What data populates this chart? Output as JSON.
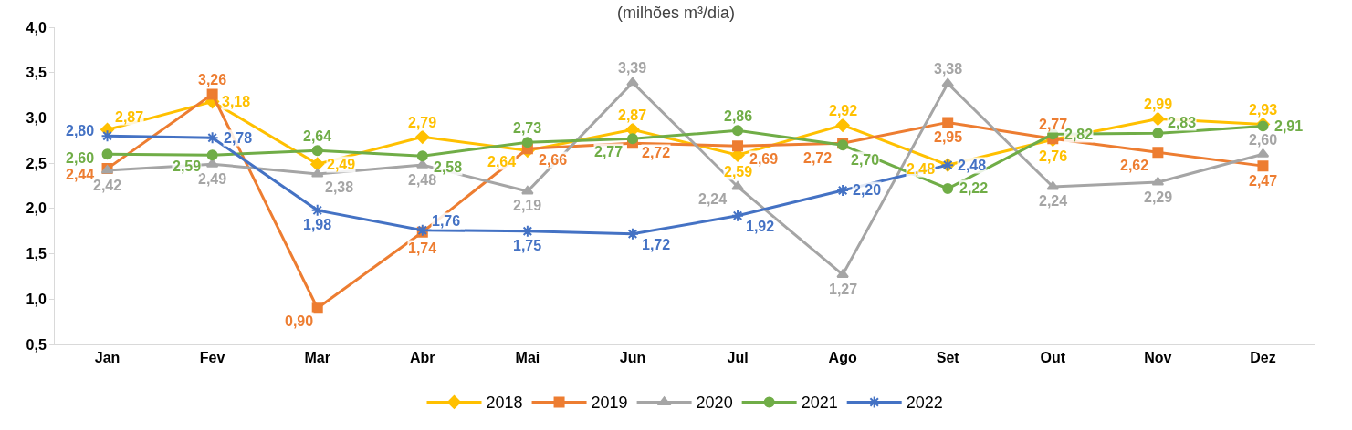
{
  "chart_data": {
    "type": "line",
    "title": "(milhões m³/dia)",
    "categories": [
      "Jan",
      "Fev",
      "Mar",
      "Abr",
      "Mai",
      "Jun",
      "Jul",
      "Ago",
      "Set",
      "Out",
      "Nov",
      "Dez"
    ],
    "series": [
      {
        "name": "2018",
        "color": "#ffc000",
        "marker": "diamond",
        "values": [
          2.87,
          3.18,
          2.49,
          2.79,
          2.64,
          2.87,
          2.59,
          2.92,
          2.48,
          2.76,
          2.99,
          2.93
        ],
        "value_labels": [
          "2,87",
          "3,18",
          "2,49",
          "2,79",
          "2,64",
          "2,87",
          "2,59",
          "2,92",
          "2,48",
          "2,76",
          "2,99",
          "2,93"
        ]
      },
      {
        "name": "2019",
        "color": "#ed7d31",
        "marker": "square",
        "values": [
          2.44,
          3.26,
          0.9,
          1.74,
          2.66,
          2.72,
          2.69,
          2.72,
          2.95,
          2.77,
          2.62,
          2.47
        ],
        "value_labels": [
          "2,44",
          "3,26",
          "0,90",
          "1,74",
          "2,66",
          "2,72",
          "2,69",
          "2,72",
          "2,95",
          "2,77",
          "2,62",
          "2,47"
        ]
      },
      {
        "name": "2020",
        "color": "#a5a5a5",
        "marker": "triangle",
        "values": [
          2.42,
          2.49,
          2.38,
          2.48,
          2.19,
          3.39,
          2.24,
          1.27,
          3.38,
          2.24,
          2.29,
          2.6
        ],
        "value_labels": [
          "2,42",
          "2,49",
          "2,38",
          "2,48",
          "2,19",
          "3,39",
          "2,24",
          "1,27",
          "3,38",
          "2,24",
          "2,29",
          "2,60"
        ]
      },
      {
        "name": "2021",
        "color": "#70ad47",
        "marker": "circle",
        "values": [
          2.6,
          2.59,
          2.64,
          2.58,
          2.73,
          2.77,
          2.86,
          2.7,
          2.22,
          2.82,
          2.83,
          2.91
        ],
        "value_labels": [
          "2,60",
          "2,59",
          "2,64",
          "2,58",
          "2,73",
          "2,77",
          "2,86",
          "2,70",
          "2,22",
          "2,82",
          "2,83",
          "2,91"
        ]
      },
      {
        "name": "2022",
        "color": "#4472c4",
        "marker": "cross",
        "values": [
          2.8,
          2.78,
          1.98,
          1.76,
          1.75,
          1.72,
          1.92,
          2.2,
          2.48,
          null,
          null,
          null
        ],
        "value_labels": [
          "2,80",
          "2,78",
          "1,98",
          "1,76",
          "1,75",
          "1,72",
          "1,92",
          "2,20",
          "2,48",
          null,
          null,
          null
        ]
      }
    ],
    "ylim": [
      0.5,
      4.0
    ],
    "yticks": [
      {
        "value": 0.5,
        "label": "0,5"
      },
      {
        "value": 1.0,
        "label": "1,0"
      },
      {
        "value": 1.5,
        "label": "1,5"
      },
      {
        "value": 2.0,
        "label": "2,0"
      },
      {
        "value": 2.5,
        "label": "2,5"
      },
      {
        "value": 3.0,
        "label": "3,0"
      },
      {
        "value": 3.5,
        "label": "3,5"
      },
      {
        "value": 4.0,
        "label": "4,0"
      }
    ],
    "legend": "bottom",
    "line_style": "solid"
  }
}
